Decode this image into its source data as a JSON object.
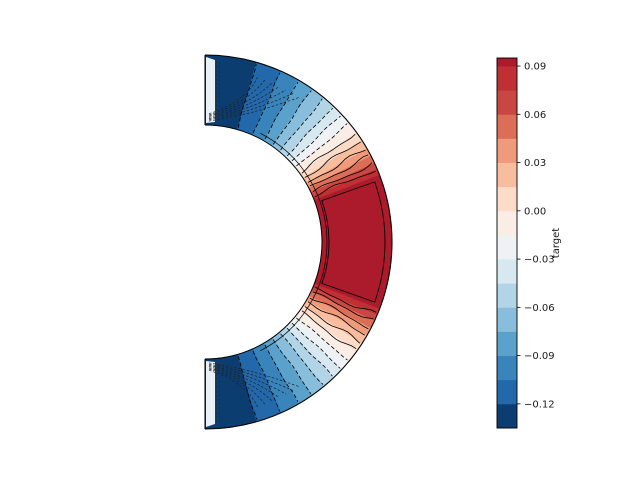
{
  "figure": {
    "background": "#ffffff"
  },
  "chart_data": {
    "type": "contour",
    "title": "",
    "colorbar_label": "target",
    "colorbar_ticks": [
      "0.09",
      "0.06",
      "0.03",
      "0.00",
      "−0.03",
      "−0.06",
      "−0.09",
      "−0.12"
    ],
    "colorbar_tick_values": [
      0.09,
      0.06,
      0.03,
      0.0,
      -0.03,
      -0.06,
      -0.09,
      -0.12
    ],
    "value_min": -0.135,
    "value_max": 0.095,
    "contour_interval": 0.015,
    "contour_levels": [
      -0.12,
      -0.105,
      -0.09,
      -0.075,
      -0.06,
      -0.045,
      -0.03,
      -0.015,
      0.0,
      0.015,
      0.03,
      0.045,
      0.06,
      0.075,
      0.09
    ],
    "band_colors": [
      "#0c3d70",
      "#2268aa",
      "#3984bb",
      "#5aa2cb",
      "#88bedb",
      "#b1d5e7",
      "#d7e8f1",
      "#eef2f5",
      "#f9ede5",
      "#fcdcc8",
      "#f8bc9f",
      "#ef9a7a",
      "#dc6e58",
      "#c94742",
      "#bf2f33",
      "#ab1b2c"
    ],
    "band_boundary_angles_deg": [
      74,
      66,
      60,
      55,
      50.5,
      46.5,
      43,
      39.5,
      36,
      33,
      30,
      27.5,
      25,
      23,
      21
    ],
    "domain": {
      "shape": "half-annulus",
      "side": "right",
      "angle_min_deg": -90,
      "angle_max_deg": 90
    },
    "note": "Filled contour field on a right half-annulus: maximum (~0.095, dark red) at the equator, minimum (~-0.135, dark blue) at the poles; dashed contour lines for negative levels, solid for non-negative; thin boundary layers along the straight pole edges and the inner arc."
  }
}
